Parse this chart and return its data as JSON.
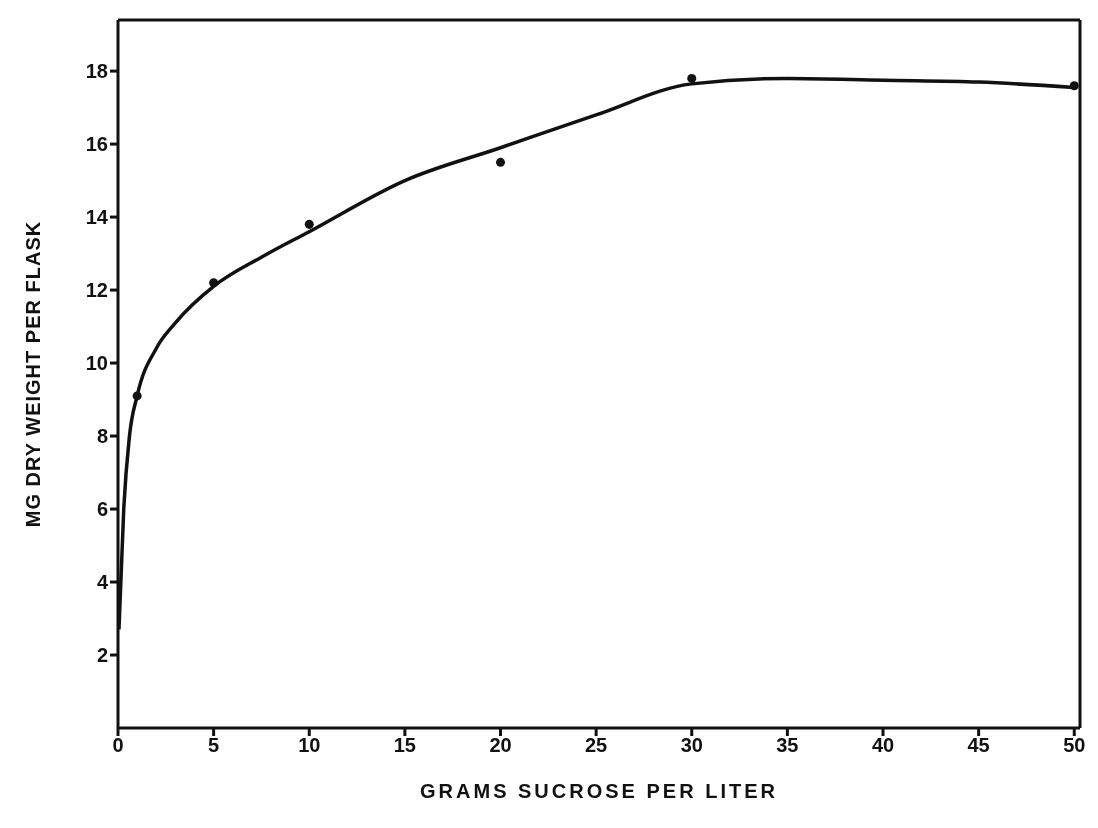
{
  "chart_data": {
    "type": "scatter",
    "xlabel": "GRAMS  SUCROSE  PER  LITER",
    "ylabel": "MG DRY WEIGHT PER FLASK",
    "xlim": [
      0,
      50.3
    ],
    "ylim": [
      0,
      19.4
    ],
    "xticks": [
      0,
      5,
      10,
      15,
      20,
      25,
      30,
      35,
      40,
      45,
      50
    ],
    "yticks": [
      2,
      4,
      6,
      8,
      10,
      12,
      14,
      16,
      18
    ],
    "series": [
      {
        "type": "scatter",
        "marker": "circle",
        "color": "#111111",
        "x": [
          1,
          5,
          10,
          20,
          30,
          50
        ],
        "values": [
          9.1,
          12.2,
          13.8,
          15.5,
          17.8,
          17.6
        ]
      },
      {
        "type": "line",
        "marker": "none",
        "color": "#111111",
        "x": [
          0.05,
          0.3,
          0.6,
          1,
          2,
          3,
          5,
          7.5,
          10,
          15,
          20,
          25,
          30,
          35,
          40,
          45,
          50
        ],
        "values": [
          2.7,
          6,
          8,
          9.1,
          10.4,
          11.1,
          12.1,
          12.9,
          13.6,
          15.0,
          15.9,
          16.8,
          17.65,
          17.8,
          17.75,
          17.7,
          17.55
        ]
      }
    ]
  }
}
